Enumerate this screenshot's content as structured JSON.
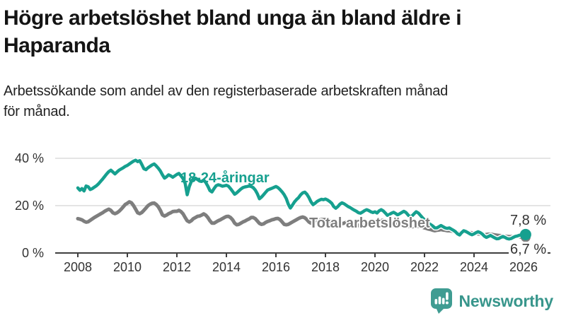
{
  "header": {
    "title_lines": [
      "Högre arbetslöshet bland unga än bland äldre i",
      "Haparanda"
    ],
    "subtitle_lines": [
      "Arbetssökande som andel av den registerbaserade arbetskraften månad",
      "för månad."
    ]
  },
  "footer": {
    "brand": "Newsworthy",
    "logo_icon": "chart-speech-bubble-icon",
    "brand_color": "#38968c"
  },
  "colors": {
    "young_series": "#16a08f",
    "total_series": "#7e7e7e",
    "gridline": "#dcdcdc",
    "axis": "#3f3f3f",
    "tick_text": "#333333"
  },
  "chart_data": {
    "type": "line",
    "x_unit": "month",
    "x_start": "2008-01",
    "x_end": "2026-02",
    "grid": "horizontal",
    "legend_position": "inline-labels",
    "y_axis": {
      "range": [
        0,
        44
      ],
      "ticks": [
        {
          "value": 0,
          "label": "0 %"
        },
        {
          "value": 20,
          "label": "20 %"
        },
        {
          "value": 40,
          "label": "40 %"
        }
      ]
    },
    "x_axis": {
      "ticks": [
        {
          "value": 2008,
          "label": "2008"
        },
        {
          "value": 2010,
          "label": "2010"
        },
        {
          "value": 2012,
          "label": "2012"
        },
        {
          "value": 2014,
          "label": "2014"
        },
        {
          "value": 2016,
          "label": "2016"
        },
        {
          "value": 2018,
          "label": "2018"
        },
        {
          "value": 2020,
          "label": "2020"
        },
        {
          "value": 2022,
          "label": "2022"
        },
        {
          "value": 2024,
          "label": "2024"
        },
        {
          "value": 2026,
          "label": "2026"
        }
      ]
    },
    "series": [
      {
        "name": "18-24-åringar",
        "color": "#16a08f",
        "end_label": "7,8 %",
        "end_value": 7.8,
        "values": [
          27.5,
          26.5,
          27.2,
          26.2,
          28.3,
          28.0,
          26.8,
          27.2,
          27.8,
          28.4,
          29.2,
          30.2,
          31.2,
          32.3,
          33.4,
          34.4,
          35.0,
          34.2,
          33.4,
          34.2,
          35.0,
          35.5,
          36.0,
          36.6,
          37.0,
          37.6,
          38.2,
          38.8,
          39.2,
          38.6,
          39.0,
          37.4,
          35.6,
          35.2,
          36.0,
          36.6,
          37.2,
          37.6,
          36.8,
          35.8,
          34.6,
          33.0,
          31.6,
          32.2,
          33.0,
          32.6,
          32.0,
          32.6,
          33.2,
          33.6,
          32.6,
          31.4,
          29.4,
          24.6,
          28.0,
          30.2,
          31.4,
          31.6,
          31.0,
          30.4,
          30.2,
          30.8,
          29.8,
          28.2,
          26.4,
          25.8,
          27.2,
          28.4,
          28.8,
          28.6,
          28.2,
          28.4,
          28.6,
          28.2,
          27.2,
          26.0,
          24.8,
          25.4,
          26.2,
          27.0,
          27.6,
          27.9,
          28.1,
          28.3,
          28.1,
          27.6,
          26.6,
          25.0,
          22.9,
          23.6,
          24.6,
          25.6,
          26.6,
          27.0,
          27.3,
          27.7,
          28.1,
          27.6,
          26.8,
          25.8,
          24.6,
          23.0,
          20.6,
          19.0,
          20.2,
          21.6,
          22.6,
          23.4,
          24.6,
          25.4,
          25.7,
          24.8,
          23.4,
          21.6,
          20.4,
          21.0,
          21.8,
          22.3,
          22.7,
          22.5,
          22.8,
          22.4,
          21.8,
          21.0,
          19.6,
          18.9,
          19.6,
          20.6,
          21.2,
          20.8,
          20.2,
          19.6,
          19.2,
          18.6,
          18.1,
          17.6,
          17.0,
          16.8,
          17.3,
          17.9,
          18.3,
          17.9,
          17.4,
          17.1,
          17.4,
          16.9,
          17.8,
          18.3,
          17.8,
          16.9,
          15.9,
          16.3,
          16.8,
          17.2,
          16.7,
          16.1,
          16.6,
          17.1,
          17.6,
          17.1,
          16.1,
          15.2,
          15.7,
          16.6,
          17.4,
          16.9,
          15.9,
          14.9,
          14.0,
          13.1,
          12.5,
          12.0,
          11.4,
          10.6,
          10.6,
          11.1,
          11.6,
          11.1,
          10.6,
          10.4,
          10.6,
          10.1,
          9.6,
          9.0,
          8.1,
          7.6,
          8.6,
          9.4,
          9.1,
          8.6,
          8.1,
          7.7,
          8.1,
          8.6,
          9.0,
          8.6,
          8.0,
          7.1,
          6.6,
          7.0,
          7.4,
          6.9,
          6.4,
          6.0,
          6.1,
          6.6,
          7.0,
          6.6,
          6.1,
          5.9,
          6.1,
          6.6,
          7.0,
          7.2,
          7.5,
          7.6,
          7.7,
          7.8
        ]
      },
      {
        "name": "Total arbetslöshet",
        "color": "#7e7e7e",
        "end_label": "6,7 %",
        "end_value": 6.7,
        "values": [
          14.5,
          14.3,
          14.0,
          13.4,
          13.0,
          13.2,
          13.8,
          14.4,
          15.0,
          15.5,
          16.0,
          16.5,
          17.0,
          17.6,
          18.1,
          18.5,
          18.0,
          17.0,
          16.6,
          17.0,
          17.6,
          18.5,
          19.5,
          20.5,
          21.0,
          21.6,
          21.2,
          20.0,
          18.5,
          17.0,
          16.6,
          17.1,
          18.0,
          19.0,
          20.0,
          20.6,
          21.0,
          21.1,
          20.5,
          19.5,
          18.0,
          16.1,
          15.6,
          16.0,
          16.6,
          17.0,
          17.5,
          17.6,
          17.6,
          18.0,
          17.5,
          16.5,
          15.0,
          13.6,
          13.1,
          13.6,
          14.5,
          15.0,
          15.5,
          15.6,
          16.0,
          16.5,
          16.0,
          15.0,
          13.6,
          12.6,
          12.6,
          13.1,
          13.6,
          14.0,
          14.5,
          15.0,
          15.4,
          15.5,
          15.0,
          14.0,
          12.6,
          11.9,
          12.1,
          12.6,
          13.1,
          13.5,
          14.0,
          14.4,
          15.0,
          15.0,
          14.5,
          13.5,
          12.5,
          12.1,
          12.3,
          12.9,
          13.3,
          13.6,
          14.0,
          14.2,
          14.5,
          14.6,
          14.1,
          13.1,
          12.1,
          11.9,
          12.1,
          12.6,
          13.1,
          13.6,
          14.1,
          14.6,
          15.0,
          15.2,
          14.9,
          14.1,
          13.1,
          12.6,
          12.9,
          13.3,
          13.6,
          13.9,
          14.1,
          14.1,
          14.1,
          13.9,
          13.6,
          12.9,
          12.1,
          11.6,
          11.9,
          12.1,
          12.4,
          12.6,
          12.9,
          13.1,
          13.1,
          12.9,
          12.6,
          12.1,
          11.6,
          11.3,
          11.6,
          11.9,
          12.1,
          12.3,
          12.4,
          12.6,
          12.9,
          12.6,
          13.1,
          13.6,
          13.9,
          13.6,
          13.3,
          13.1,
          12.9,
          12.6,
          12.4,
          12.3,
          12.4,
          12.6,
          12.4,
          12.1,
          11.6,
          11.1,
          11.1,
          11.3,
          11.4,
          11.3,
          11.1,
          10.9,
          10.6,
          10.4,
          10.1,
          9.9,
          9.6,
          9.4,
          9.6,
          9.7,
          9.9,
          9.7,
          9.6,
          9.4,
          9.4,
          9.3,
          9.1,
          8.9,
          8.6,
          8.5,
          8.6,
          8.8,
          8.9,
          8.8,
          8.6,
          8.5,
          8.4,
          8.3,
          8.1,
          8.0,
          7.8,
          7.7,
          7.8,
          7.9,
          7.9,
          7.8,
          7.6,
          7.5,
          7.4,
          7.3,
          7.2,
          7.1,
          7.0,
          6.9,
          6.9,
          7.0,
          7.1,
          7.0,
          6.9,
          6.7,
          6.7,
          6.7
        ]
      }
    ]
  }
}
